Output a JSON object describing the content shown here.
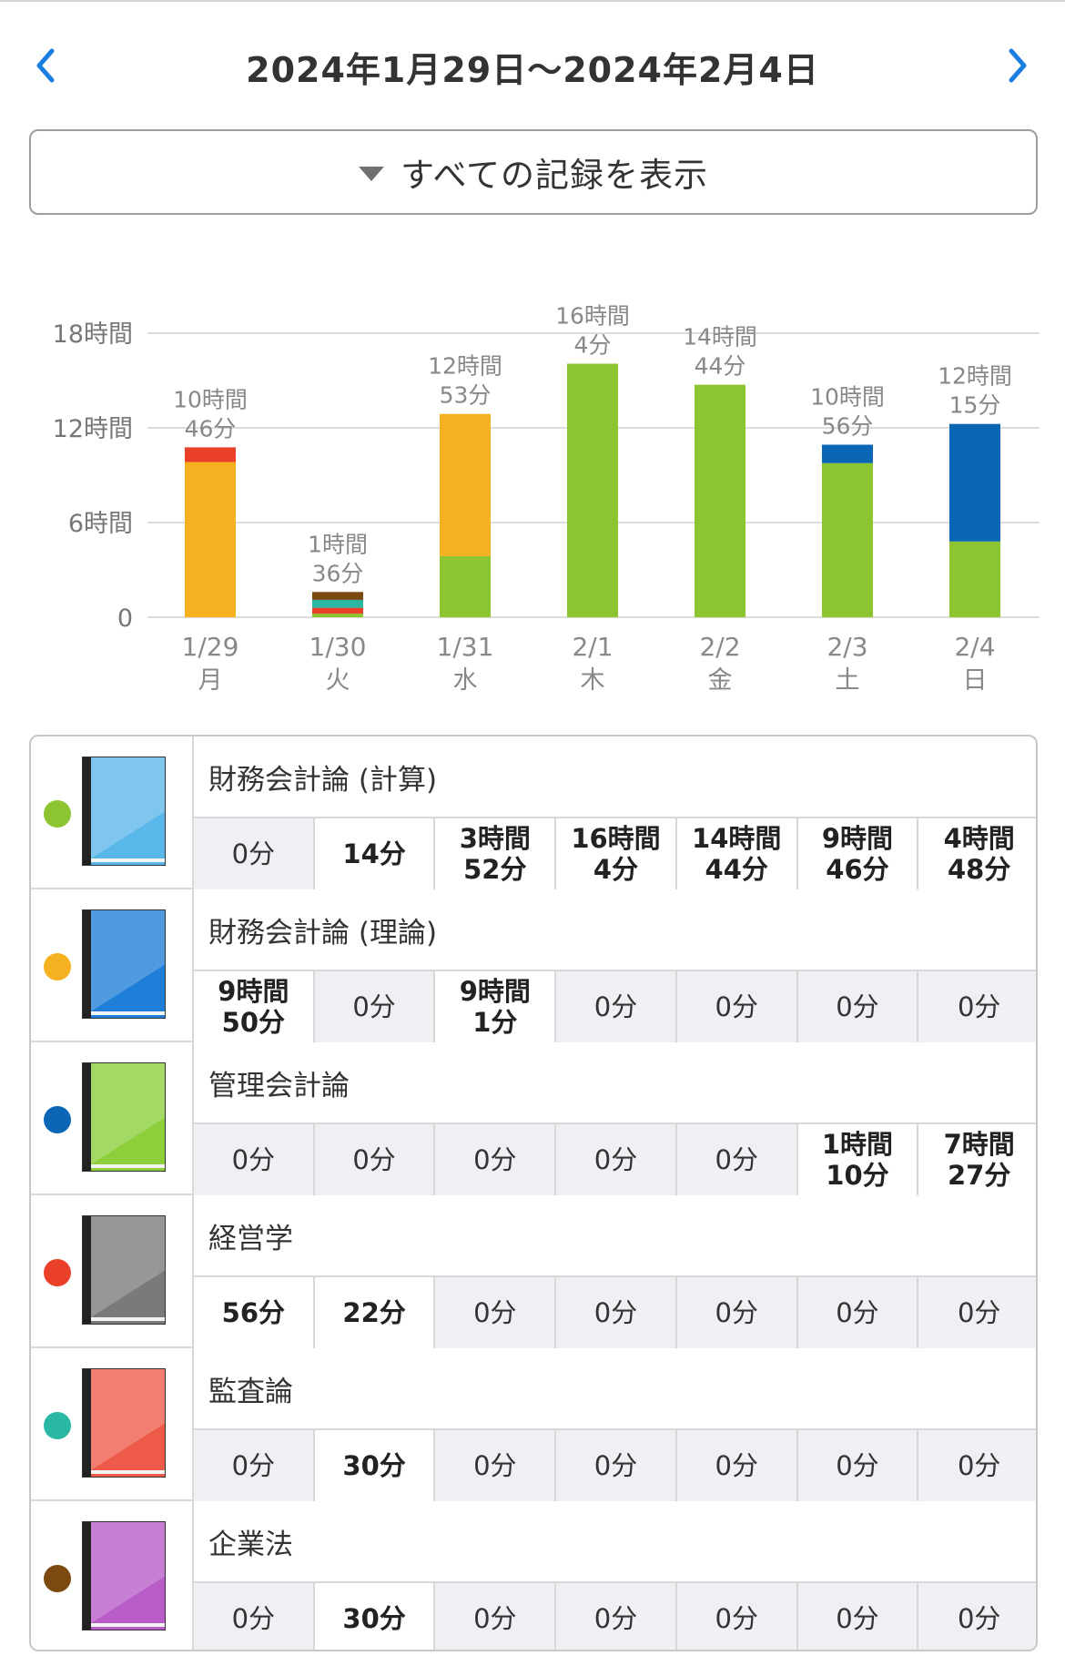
{
  "header": {
    "title": "2024年1月29日〜2024年2月4日",
    "prev_icon": "chevron-left-icon",
    "next_icon": "chevron-right-icon",
    "accent": "#1a7de0"
  },
  "filter": {
    "label": "すべての記録を表示",
    "icon": "triangle-down-icon"
  },
  "chart_data": {
    "type": "bar",
    "stacked": true,
    "title": "",
    "xlabel": "",
    "ylabel": "",
    "ylim": [
      0,
      18
    ],
    "yticks": [
      0,
      6,
      12,
      18
    ],
    "ytick_labels": [
      "0",
      "6時間",
      "12時間",
      "18時間"
    ],
    "grid": true,
    "categories": [
      "1/29",
      "1/30",
      "1/31",
      "2/1",
      "2/2",
      "2/3",
      "2/4"
    ],
    "weekdays": [
      "月",
      "火",
      "水",
      "木",
      "金",
      "土",
      "日"
    ],
    "totals_labels": [
      [
        "10時間",
        "46分"
      ],
      [
        "1時間",
        "36分"
      ],
      [
        "12時間",
        "53分"
      ],
      [
        "16時間",
        "4分"
      ],
      [
        "14時間",
        "44分"
      ],
      [
        "10時間",
        "56分"
      ],
      [
        "12時間",
        "15分"
      ]
    ],
    "series": [
      {
        "color": "#8cc530",
        "values_min": [
          0,
          14,
          232,
          964,
          884,
          586,
          288
        ]
      },
      {
        "color": "#f5b120",
        "values_min": [
          590,
          0,
          541,
          0,
          0,
          0,
          0
        ]
      },
      {
        "color": "#0b66b5",
        "values_min": [
          0,
          0,
          0,
          0,
          0,
          70,
          447
        ]
      },
      {
        "color": "#ea4029",
        "values_min": [
          56,
          22,
          0,
          0,
          0,
          0,
          0
        ]
      },
      {
        "color": "#2ab8a4",
        "values_min": [
          0,
          30,
          0,
          0,
          0,
          0,
          0
        ]
      },
      {
        "color": "#7b4a10",
        "values_min": [
          0,
          30,
          0,
          0,
          0,
          0,
          0
        ]
      }
    ]
  },
  "subjects": [
    {
      "name": "財務会計論 (計算)",
      "dot_color": "#8cc530",
      "book_color": "#5ab7ea",
      "book_icon": "book-icon",
      "cells": [
        {
          "text": "0分",
          "zero": true
        },
        {
          "text": "14分",
          "zero": false
        },
        {
          "text": "3時間\n52分",
          "zero": false
        },
        {
          "text": "16時間\n4分",
          "zero": false
        },
        {
          "text": "14時間\n44分",
          "zero": false
        },
        {
          "text": "9時間\n46分",
          "zero": false
        },
        {
          "text": "4時間\n48分",
          "zero": false
        }
      ]
    },
    {
      "name": "財務会計論 (理論)",
      "dot_color": "#f5b120",
      "book_color": "#1f7fd8",
      "book_icon": "book-icon",
      "cells": [
        {
          "text": "9時間\n50分",
          "zero": false
        },
        {
          "text": "0分",
          "zero": true
        },
        {
          "text": "9時間\n1分",
          "zero": false
        },
        {
          "text": "0分",
          "zero": true
        },
        {
          "text": "0分",
          "zero": true
        },
        {
          "text": "0分",
          "zero": true
        },
        {
          "text": "0分",
          "zero": true
        }
      ]
    },
    {
      "name": "管理会計論",
      "dot_color": "#0b66b5",
      "book_color": "#8ccf3a",
      "book_icon": "book-icon",
      "cells": [
        {
          "text": "0分",
          "zero": true
        },
        {
          "text": "0分",
          "zero": true
        },
        {
          "text": "0分",
          "zero": true
        },
        {
          "text": "0分",
          "zero": true
        },
        {
          "text": "0分",
          "zero": true
        },
        {
          "text": "1時間\n10分",
          "zero": false
        },
        {
          "text": "7時間\n27分",
          "zero": false
        }
      ]
    },
    {
      "name": "経営学",
      "dot_color": "#ea4029",
      "book_color": "#7a7a7a",
      "book_icon": "book-icon",
      "cells": [
        {
          "text": "56分",
          "zero": false
        },
        {
          "text": "22分",
          "zero": false
        },
        {
          "text": "0分",
          "zero": true
        },
        {
          "text": "0分",
          "zero": true
        },
        {
          "text": "0分",
          "zero": true
        },
        {
          "text": "0分",
          "zero": true
        },
        {
          "text": "0分",
          "zero": true
        }
      ]
    },
    {
      "name": "監査論",
      "dot_color": "#2ab8a4",
      "book_color": "#ee5a48",
      "book_icon": "book-icon",
      "cells": [
        {
          "text": "0分",
          "zero": true
        },
        {
          "text": "30分",
          "zero": false
        },
        {
          "text": "0分",
          "zero": true
        },
        {
          "text": "0分",
          "zero": true
        },
        {
          "text": "0分",
          "zero": true
        },
        {
          "text": "0分",
          "zero": true
        },
        {
          "text": "0分",
          "zero": true
        }
      ]
    },
    {
      "name": "企業法",
      "dot_color": "#7b4a10",
      "book_color": "#b85cc8",
      "book_icon": "book-icon",
      "cells": [
        {
          "text": "0分",
          "zero": true
        },
        {
          "text": "30分",
          "zero": false
        },
        {
          "text": "0分",
          "zero": true
        },
        {
          "text": "0分",
          "zero": true
        },
        {
          "text": "0分",
          "zero": true
        },
        {
          "text": "0分",
          "zero": true
        },
        {
          "text": "0分",
          "zero": true
        }
      ]
    }
  ]
}
